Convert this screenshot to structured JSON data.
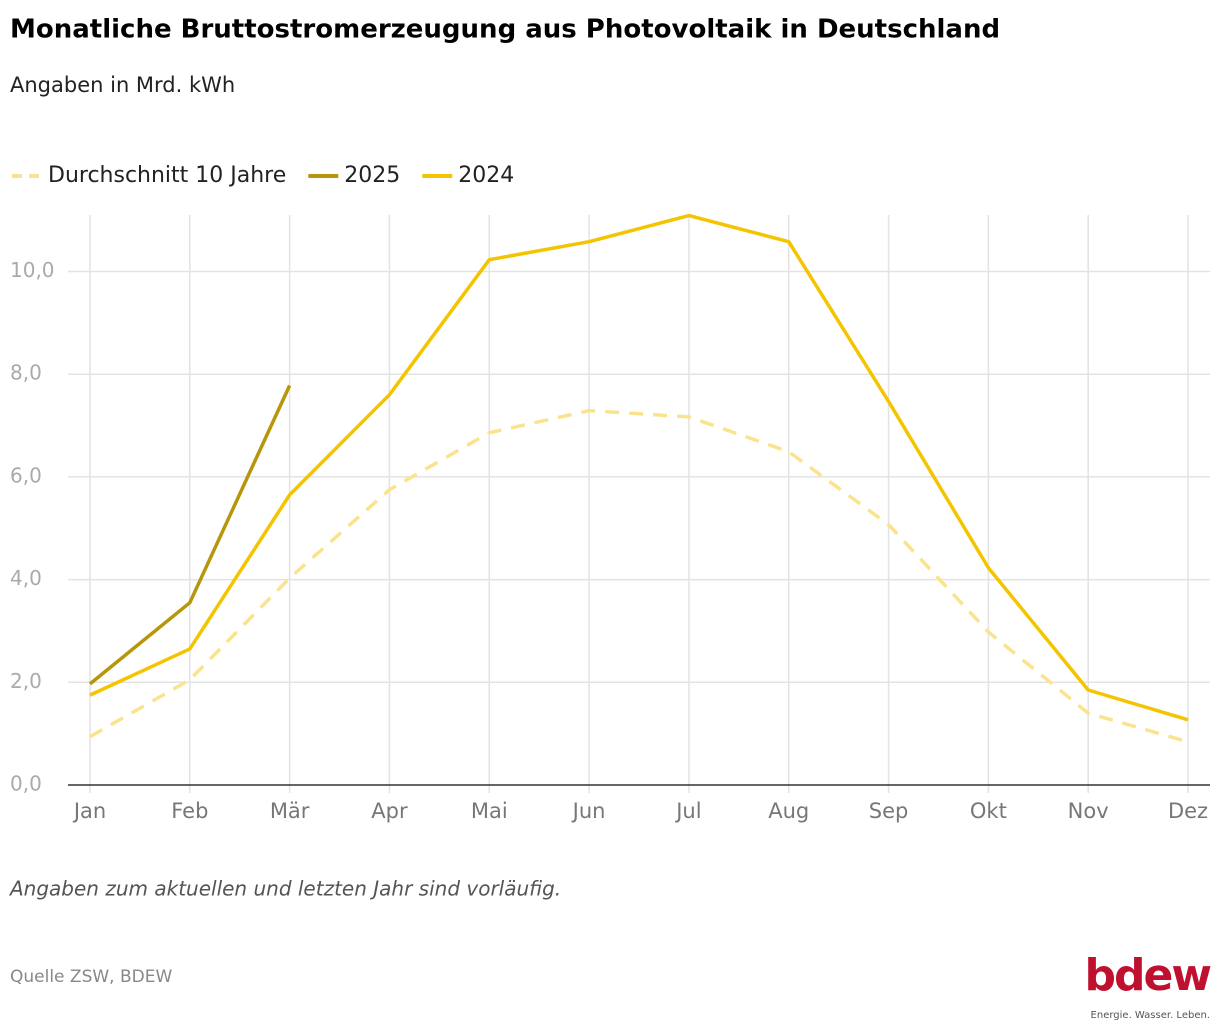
{
  "chart_data": {
    "type": "line",
    "title": "Monatliche Bruttostromerzeugung aus Photovoltaik in Deutschland",
    "subtitle": "Angaben in Mrd. kWh",
    "note": "Angaben zum aktuellen und letzten Jahr sind vorläufig.",
    "source": "Quelle ZSW, BDEW",
    "logo": {
      "name": "bdew",
      "tagline": "Energie. Wasser. Leben."
    },
    "categories": [
      "Jan",
      "Feb",
      "Mär",
      "Apr",
      "Mai",
      "Jun",
      "Jul",
      "Aug",
      "Sep",
      "Okt",
      "Nov",
      "Dez"
    ],
    "series": [
      {
        "name": "Durchschnitt 10 Jahre",
        "color": "#fbe38e",
        "dashed": true,
        "values": [
          0.94,
          2.05,
          4.03,
          5.75,
          6.86,
          7.29,
          7.17,
          6.49,
          5.07,
          2.98,
          1.4,
          0.84
        ]
      },
      {
        "name": "2025",
        "color": "#b8960c",
        "dashed": false,
        "values": [
          1.97,
          3.55,
          7.78,
          null,
          null,
          null,
          null,
          null,
          null,
          null,
          null,
          null
        ]
      },
      {
        "name": "2024",
        "color": "#f5c400",
        "dashed": false,
        "values": [
          1.75,
          2.65,
          5.65,
          7.6,
          10.23,
          10.58,
          11.09,
          10.58,
          7.47,
          4.23,
          1.85,
          1.27
        ]
      }
    ],
    "ylim": [
      0,
      11.1
    ],
    "yticks": [
      {
        "value": 0,
        "label": "0,0"
      },
      {
        "value": 2,
        "label": "2,0"
      },
      {
        "value": 4,
        "label": "4,0"
      },
      {
        "value": 6,
        "label": "6,0"
      },
      {
        "value": 8,
        "label": "8,0"
      },
      {
        "value": 10,
        "label": "10,0"
      }
    ],
    "grid": true,
    "legend": "top-left"
  }
}
